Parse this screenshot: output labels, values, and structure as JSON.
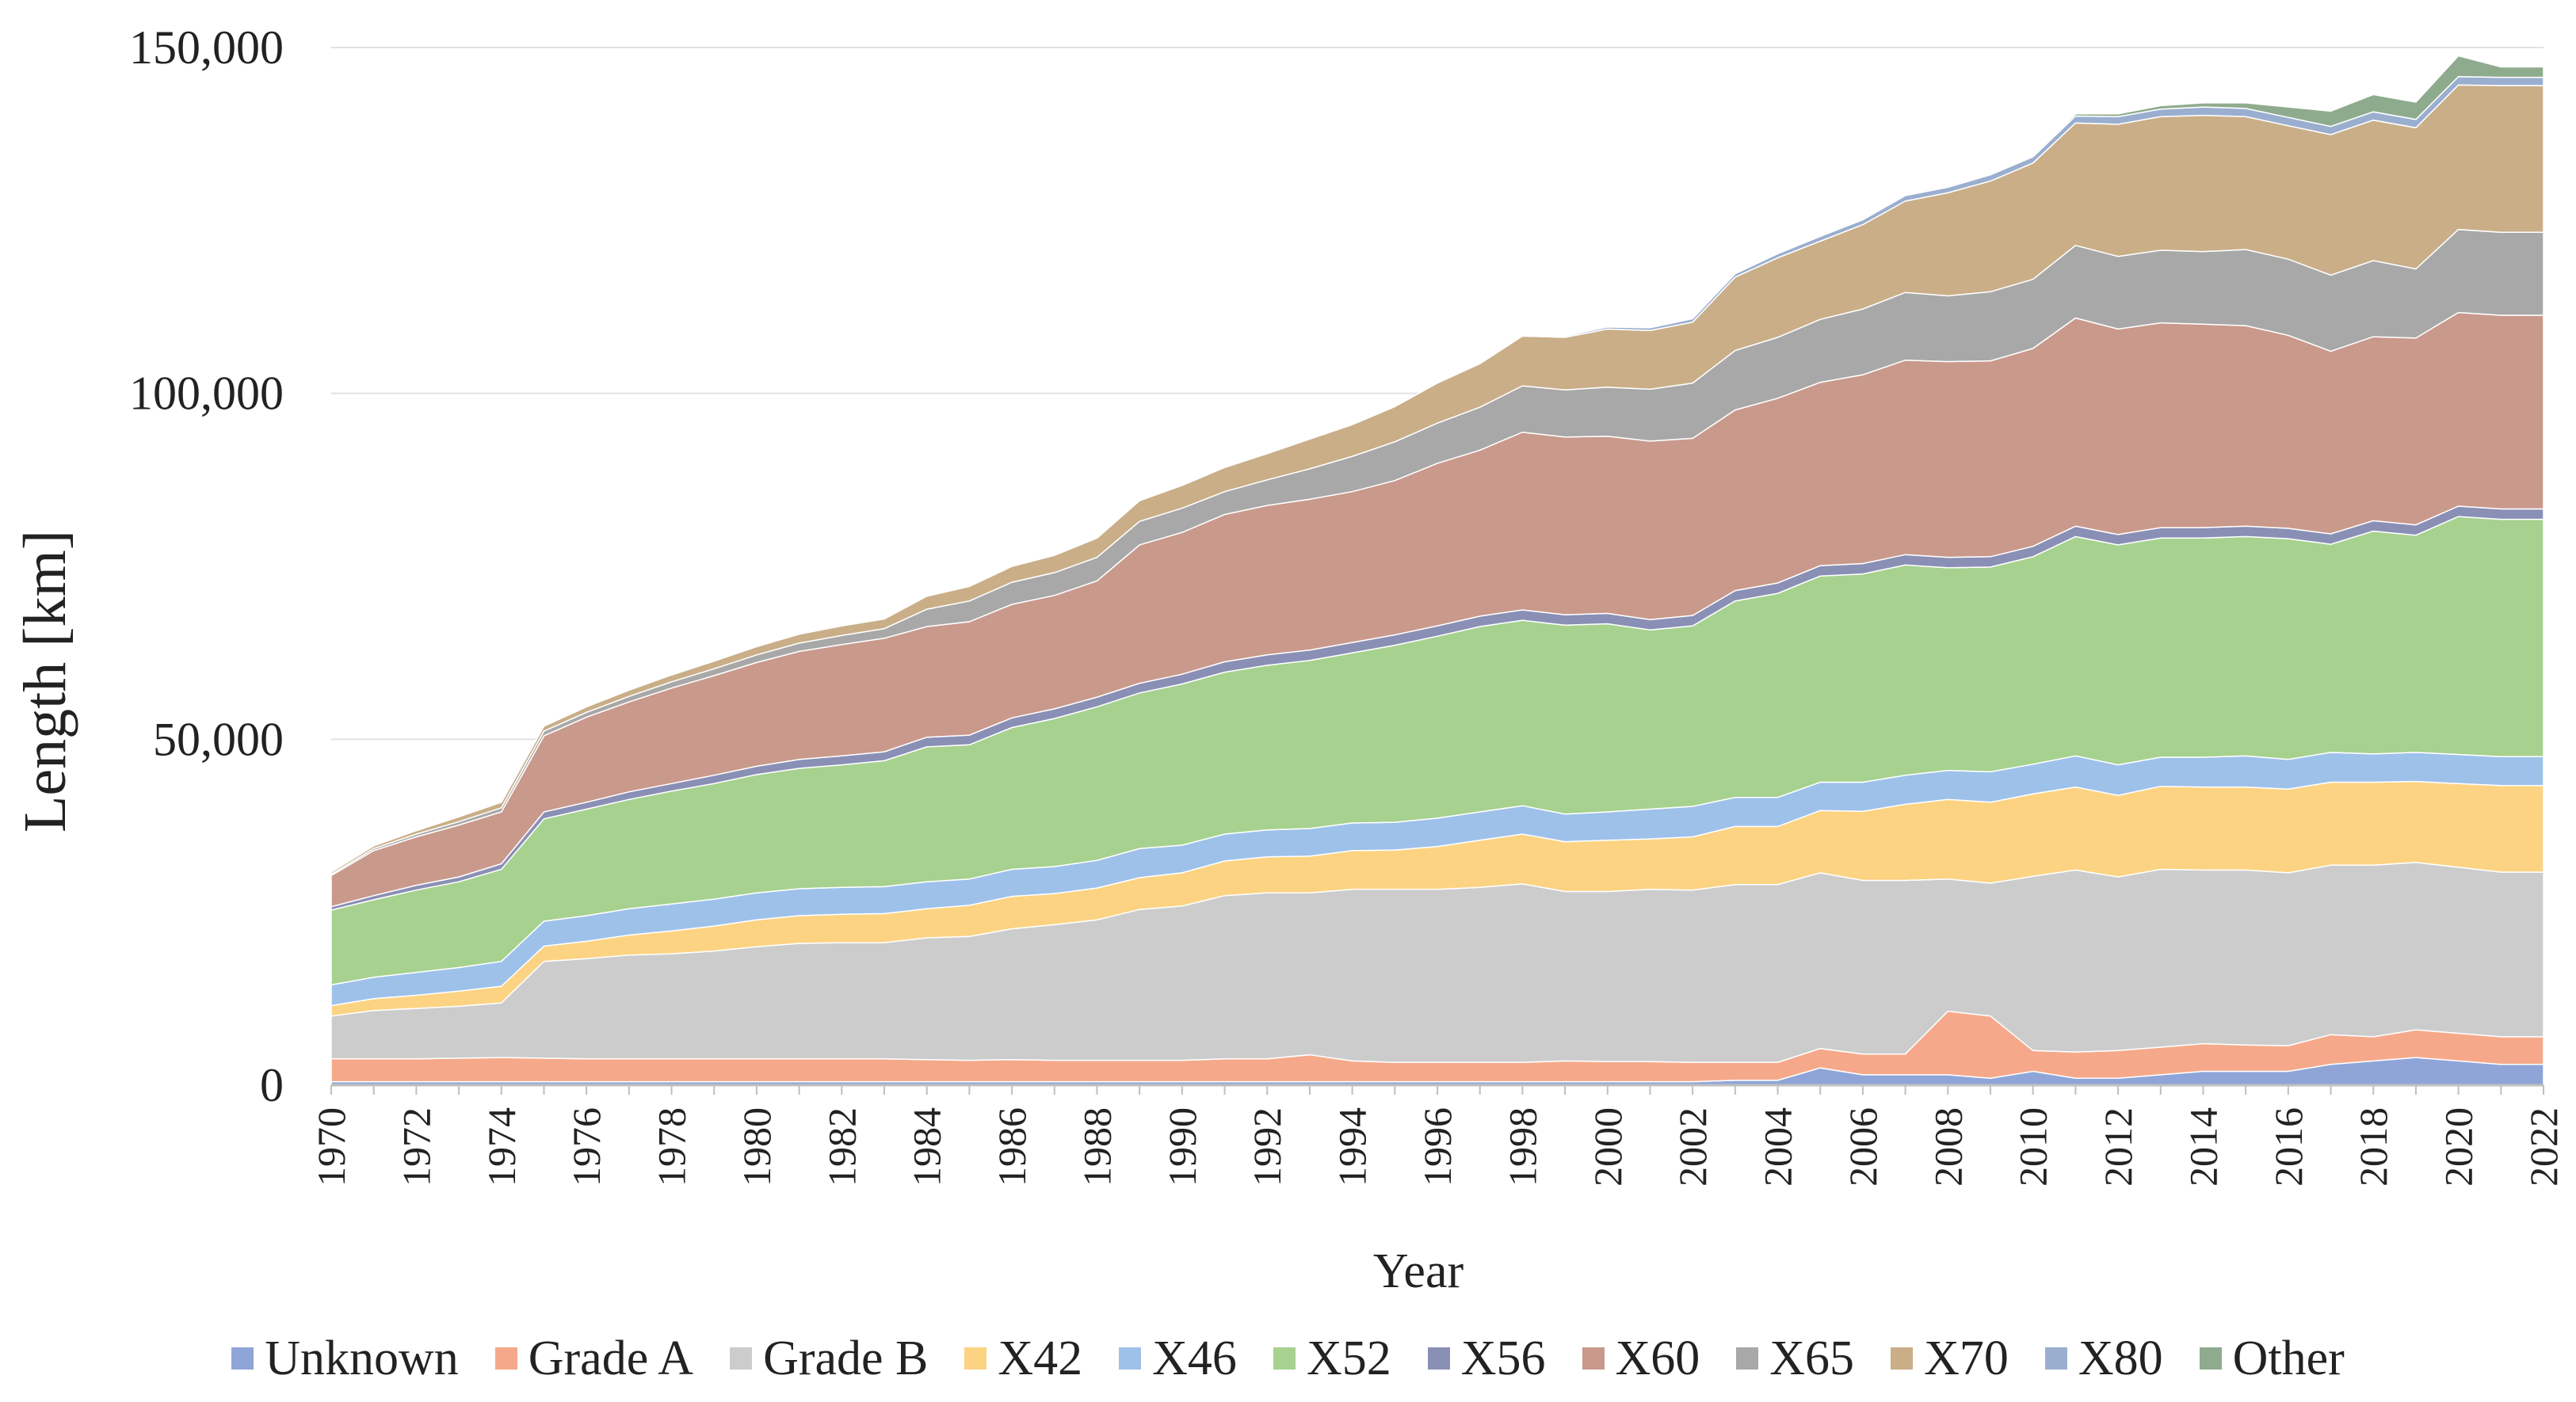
{
  "chart_data": {
    "type": "area",
    "stacked": true,
    "title": "",
    "xlabel": "Year",
    "ylabel": "Length [km]",
    "ylim": [
      0,
      150000
    ],
    "yticks": [
      0,
      50000,
      100000,
      150000
    ],
    "ytick_labels": [
      "0",
      "50,000",
      "100,000",
      "150,000"
    ],
    "x": [
      1970,
      1971,
      1972,
      1973,
      1974,
      1975,
      1976,
      1977,
      1978,
      1979,
      1980,
      1981,
      1982,
      1983,
      1984,
      1985,
      1986,
      1987,
      1988,
      1989,
      1990,
      1991,
      1992,
      1993,
      1994,
      1995,
      1996,
      1997,
      1998,
      1999,
      2000,
      2001,
      2002,
      2003,
      2004,
      2005,
      2006,
      2007,
      2008,
      2009,
      2010,
      2011,
      2012,
      2013,
      2014,
      2015,
      2016,
      2017,
      2018,
      2019,
      2020,
      2021,
      2022
    ],
    "xtick_labels": [
      "1970",
      "1972",
      "1974",
      "1976",
      "1978",
      "1980",
      "1982",
      "1984",
      "1986",
      "1988",
      "1990",
      "1992",
      "1994",
      "1996",
      "1998",
      "2000",
      "2002",
      "2004",
      "2006",
      "2008",
      "2010",
      "2012",
      "2014",
      "2016",
      "2018",
      "2020",
      "2022"
    ],
    "grid": "horizontal",
    "legend_position": "bottom",
    "series": [
      {
        "name": "Unknown",
        "color": "#8fa5d8",
        "values": [
          500,
          500,
          500,
          500,
          500,
          500,
          500,
          500,
          500,
          500,
          500,
          500,
          500,
          500,
          500,
          500,
          500,
          500,
          500,
          500,
          500,
          500,
          500,
          500,
          500,
          500,
          500,
          500,
          500,
          500,
          500,
          500,
          500,
          700,
          700,
          2500,
          1500,
          1500,
          1500,
          1000,
          2000,
          1000,
          1000,
          1500,
          2000,
          2000,
          2000,
          3000,
          3500,
          4000,
          3500,
          3000,
          3000
        ]
      },
      {
        "name": "Grade A",
        "color": "#f5a98a",
        "values": [
          3300,
          3300,
          3300,
          3400,
          3500,
          3400,
          3300,
          3300,
          3300,
          3300,
          3300,
          3300,
          3300,
          3300,
          3200,
          3100,
          3200,
          3100,
          3100,
          3100,
          3100,
          3300,
          3300,
          3900,
          3000,
          2800,
          2800,
          2800,
          2800,
          3000,
          2900,
          2900,
          2800,
          2600,
          2600,
          2800,
          3000,
          3000,
          9200,
          9000,
          3000,
          3800,
          4000,
          4000,
          4000,
          3800,
          3700,
          4300,
          3500,
          4000,
          4000,
          4000,
          4000
        ]
      },
      {
        "name": "Grade B",
        "color": "#cccccc",
        "values": [
          6200,
          7000,
          7300,
          7500,
          7900,
          14000,
          14500,
          15000,
          15200,
          15600,
          16200,
          16700,
          16800,
          16800,
          17600,
          17900,
          18900,
          19600,
          20300,
          21800,
          22300,
          23600,
          24000,
          23400,
          24800,
          25000,
          25000,
          25300,
          25800,
          24500,
          24600,
          24900,
          24900,
          25700,
          25700,
          25400,
          25100,
          25100,
          19100,
          19200,
          25200,
          26300,
          25100,
          25700,
          25100,
          25300,
          25000,
          24500,
          24800,
          24200,
          24000,
          23800,
          23800
        ]
      },
      {
        "name": "X42",
        "color": "#fcd382",
        "values": [
          1500,
          1700,
          1900,
          2200,
          2400,
          2200,
          2500,
          2900,
          3300,
          3600,
          3900,
          4000,
          4100,
          4200,
          4200,
          4500,
          4700,
          4500,
          4600,
          4600,
          4800,
          5000,
          5200,
          5300,
          5600,
          5700,
          6200,
          6800,
          7200,
          7200,
          7400,
          7300,
          7700,
          8400,
          8400,
          9000,
          10000,
          11000,
          11500,
          11700,
          11900,
          12000,
          11800,
          12000,
          12000,
          12000,
          12100,
          12000,
          12000,
          11700,
          12100,
          12500,
          12500
        ]
      },
      {
        "name": "X46",
        "color": "#9ec1e9",
        "values": [
          3000,
          3100,
          3300,
          3400,
          3600,
          3600,
          3700,
          3800,
          3900,
          3900,
          3900,
          3900,
          3900,
          3900,
          3900,
          3800,
          3900,
          3900,
          4000,
          4200,
          4000,
          3900,
          3900,
          4000,
          4000,
          4000,
          4100,
          4100,
          4100,
          4000,
          4100,
          4300,
          4400,
          4200,
          4200,
          4100,
          4200,
          4200,
          4200,
          4400,
          4300,
          4500,
          4400,
          4200,
          4300,
          4500,
          4300,
          4300,
          4100,
          4200,
          4200,
          4200,
          4200
        ]
      },
      {
        "name": "X52",
        "color": "#a6d18f",
        "values": [
          10800,
          11200,
          11900,
          12400,
          13300,
          14800,
          15400,
          15800,
          16300,
          16700,
          17100,
          17400,
          17700,
          18200,
          19500,
          19400,
          20500,
          21400,
          22200,
          22500,
          23300,
          23400,
          23800,
          24300,
          24600,
          25600,
          26300,
          26800,
          26800,
          27300,
          27200,
          25900,
          26100,
          28400,
          29500,
          29800,
          30100,
          30400,
          29300,
          29600,
          30000,
          31700,
          31800,
          31700,
          31700,
          31700,
          31900,
          30100,
          32200,
          31400,
          34400,
          34300,
          34300
        ]
      },
      {
        "name": "X56",
        "color": "#8a8fb5",
        "values": [
          500,
          600,
          700,
          700,
          800,
          1000,
          1000,
          1100,
          1100,
          1200,
          1200,
          1300,
          1300,
          1300,
          1400,
          1400,
          1400,
          1400,
          1400,
          1400,
          1400,
          1500,
          1500,
          1500,
          1500,
          1500,
          1500,
          1500,
          1500,
          1500,
          1500,
          1500,
          1500,
          1500,
          1500,
          1500,
          1500,
          1500,
          1500,
          1500,
          1500,
          1500,
          1500,
          1500,
          1500,
          1500,
          1500,
          1500,
          1500,
          1500,
          1500,
          1500,
          1500
        ]
      },
      {
        "name": "X60",
        "color": "#c9998c",
        "values": [
          4500,
          6500,
          7000,
          7500,
          7500,
          11000,
          12300,
          13000,
          13800,
          14400,
          15000,
          15600,
          16100,
          16400,
          16000,
          16400,
          16400,
          16400,
          16800,
          20000,
          20500,
          21300,
          21600,
          21800,
          21800,
          22300,
          23500,
          24000,
          25700,
          25700,
          25600,
          25800,
          25600,
          26100,
          26700,
          26500,
          27300,
          28100,
          28300,
          28300,
          28600,
          30100,
          29700,
          29600,
          29400,
          29000,
          27900,
          26400,
          26600,
          27000,
          28000,
          28000,
          28000
        ]
      },
      {
        "name": "X65",
        "color": "#a8a8a8",
        "values": [
          200,
          300,
          400,
          500,
          600,
          700,
          700,
          800,
          900,
          1000,
          1100,
          1200,
          1300,
          1400,
          2500,
          3000,
          3200,
          3300,
          3400,
          3400,
          3500,
          3300,
          3700,
          4400,
          5100,
          5600,
          5800,
          6200,
          6700,
          6800,
          7100,
          7500,
          8000,
          8600,
          8800,
          9100,
          9500,
          9800,
          9500,
          10000,
          10000,
          10500,
          10500,
          10500,
          10500,
          11000,
          11000,
          11000,
          11000,
          10000,
          12000,
          12000,
          12000
        ]
      },
      {
        "name": "X70",
        "color": "#c9ae88",
        "values": [
          300,
          400,
          500,
          700,
          800,
          700,
          800,
          900,
          1000,
          1100,
          1200,
          1300,
          1400,
          1400,
          1900,
          2100,
          2300,
          2500,
          2800,
          3000,
          3300,
          3500,
          3800,
          4300,
          4600,
          5100,
          5800,
          6300,
          7200,
          7600,
          8400,
          8500,
          8800,
          10600,
          11500,
          11300,
          12200,
          13200,
          14900,
          16000,
          16800,
          17700,
          19100,
          19300,
          19700,
          19200,
          19300,
          20300,
          20300,
          20400,
          20900,
          21200,
          21200
        ]
      },
      {
        "name": "X80",
        "color": "#9aaecf",
        "values": [
          0,
          0,
          0,
          0,
          0,
          0,
          0,
          0,
          0,
          0,
          0,
          0,
          0,
          0,
          0,
          0,
          0,
          0,
          0,
          0,
          0,
          0,
          0,
          0,
          0,
          0,
          0,
          0,
          0,
          200,
          300,
          400,
          500,
          500,
          600,
          700,
          700,
          800,
          800,
          900,
          900,
          1000,
          1100,
          1100,
          1200,
          1200,
          1200,
          1200,
          1200,
          1200,
          1200,
          1200,
          1200
        ]
      },
      {
        "name": "Other",
        "color": "#8fab8e",
        "values": [
          0,
          0,
          0,
          0,
          0,
          0,
          0,
          0,
          0,
          0,
          0,
          0,
          0,
          0,
          0,
          0,
          0,
          0,
          0,
          0,
          0,
          0,
          0,
          0,
          0,
          0,
          0,
          0,
          0,
          0,
          0,
          0,
          0,
          0,
          0,
          0,
          0,
          0,
          0,
          0,
          0,
          300,
          400,
          500,
          600,
          800,
          1500,
          2200,
          2500,
          2500,
          3000,
          1500,
          1500
        ]
      }
    ]
  }
}
